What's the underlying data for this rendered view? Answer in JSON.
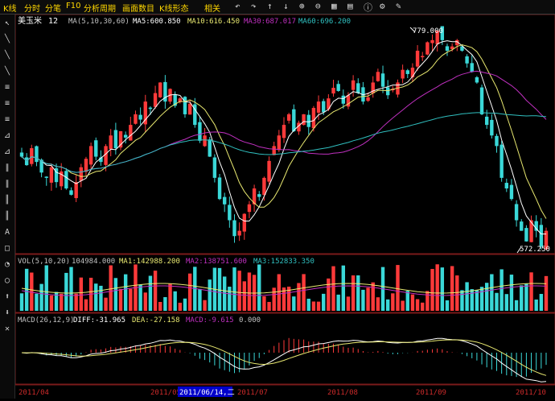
{
  "topbar": {
    "tabs": [
      "K线",
      "分时",
      "分笔",
      "F10",
      "分析周期",
      "画面数目",
      "K线形态"
    ],
    "related": "相关"
  },
  "price_panel": {
    "name": "美玉米",
    "period": "12",
    "ma_label": "MA(5,10,30,60)",
    "ma5": "MA5:600.850",
    "ma10": "MA10:616.450",
    "ma30": "MA30:687.017",
    "ma60": "MA60:696.200",
    "high_label": "779.000",
    "low_label": "572.250"
  },
  "volume_panel": {
    "label": "VOL(5,10,20)",
    "value": "104984.000",
    "ma1": "MA1:142988.200",
    "ma2": "MA2:138751.600",
    "ma3": "MA3:152833.350"
  },
  "macd_panel": {
    "label": "MACD(26,12,9)",
    "diff": "DIFF:-31.965",
    "dea": "DEA:-27.158",
    "macd": "MACD:-9.615",
    "zero": "0.000"
  },
  "dates": {
    "d1": "2011/04",
    "d2": "2011/05",
    "selected": "2011/06/14,二",
    "d3": "2011/07",
    "d4": "2011/08",
    "d5": "2011/09",
    "d6": "2011/10"
  },
  "colors": {
    "up": "#ff3a3a",
    "down": "#3ad8d8",
    "ma5": "#ffffff",
    "ma10": "#e8e870",
    "ma30": "#c030c0",
    "ma60": "#30c0c0"
  },
  "chart_data": {
    "type": "candlestick",
    "close_path": [
      660,
      652,
      668,
      655,
      645,
      640,
      650,
      636,
      646,
      630,
      624,
      636,
      650,
      658,
      670,
      660,
      655,
      670,
      680,
      668,
      684,
      678,
      690,
      700,
      695,
      712,
      705,
      720,
      730,
      712,
      724,
      708,
      715,
      700,
      710,
      690,
      675,
      680,
      660,
      640,
      620,
      615,
      600,
      585,
      590,
      606,
      615,
      630,
      622,
      640,
      656,
      670,
      680,
      690,
      700,
      684,
      692,
      700,
      688,
      706,
      712,
      702,
      715,
      725,
      722,
      710,
      718,
      732,
      720,
      712,
      716,
      730,
      740,
      726,
      718,
      724,
      730,
      742,
      738,
      744,
      760,
      755,
      768,
      770,
      779,
      770,
      760,
      764,
      770,
      760,
      748,
      740,
      730,
      700,
      690,
      680,
      670,
      640,
      630,
      620,
      600,
      590,
      580,
      600,
      590,
      575,
      590
    ]
  }
}
